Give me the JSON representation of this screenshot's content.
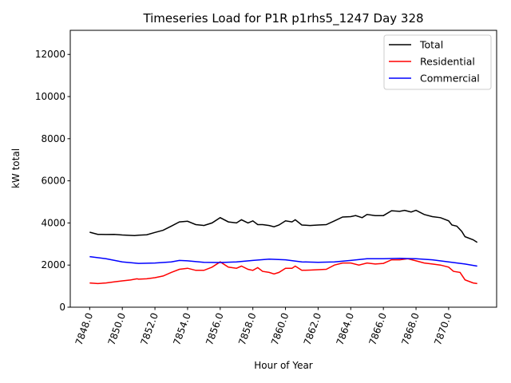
{
  "chart_data": {
    "type": "line",
    "title": "Timeseries Load for P1R p1rhs5_1247  Day 328",
    "xlabel": "Hour of Year",
    "ylabel": "kW total",
    "xlim": [
      7846.81,
      7872.94
    ],
    "ylim": [
      0,
      13145
    ],
    "xticks": [
      7848,
      7850,
      7852,
      7854,
      7856,
      7858,
      7860,
      7862,
      7864,
      7866,
      7868,
      7870
    ],
    "xtick_labels": [
      "7848.0",
      "7850.0",
      "7852.0",
      "7854.0",
      "7856.0",
      "7858.0",
      "7860.0",
      "7862.0",
      "7864.0",
      "7866.0",
      "7868.0",
      "7870.0"
    ],
    "yticks": [
      0,
      2000,
      4000,
      6000,
      8000,
      10000,
      12000
    ],
    "ytick_labels": [
      "0",
      "2000",
      "4000",
      "6000",
      "8000",
      "10000",
      "12000"
    ],
    "grid": false,
    "legend_position": "top-right",
    "series": [
      {
        "name": "Total",
        "color": "#000000",
        "x": [
          7848,
          7848.5,
          7849,
          7849.5,
          7850,
          7850.5,
          7850.75,
          7851,
          7851.5,
          7852,
          7852.5,
          7853,
          7853.5,
          7854,
          7854.5,
          7855,
          7855.5,
          7856,
          7856.5,
          7857,
          7857.3,
          7857.7,
          7858,
          7858.3,
          7858.6,
          7859,
          7859.3,
          7859.6,
          7860,
          7860.4,
          7860.6,
          7861,
          7861.5,
          7862,
          7862.5,
          7863,
          7863.5,
          7864,
          7864.3,
          7864.7,
          7865,
          7865.5,
          7866,
          7866.5,
          7867,
          7867.3,
          7867.7,
          7868,
          7868.5,
          7869,
          7869.5,
          7870,
          7870.2,
          7870.5,
          7870.8,
          7871,
          7871.5,
          7871.75
        ],
        "y": [
          3560,
          3460,
          3450,
          3460,
          3430,
          3410,
          3400,
          3420,
          3440,
          3550,
          3650,
          3850,
          4050,
          4080,
          3920,
          3880,
          4000,
          4250,
          4050,
          4000,
          4150,
          4000,
          4100,
          3920,
          3920,
          3880,
          3820,
          3900,
          4100,
          4050,
          4150,
          3900,
          3880,
          3900,
          3920,
          4100,
          4280,
          4300,
          4350,
          4250,
          4400,
          4350,
          4350,
          4580,
          4550,
          4600,
          4520,
          4600,
          4400,
          4300,
          4250,
          4100,
          3900,
          3850,
          3600,
          3350,
          3200,
          3080
        ]
      },
      {
        "name": "Residential",
        "color": "#ff0000",
        "x": [
          7848,
          7848.5,
          7849,
          7849.5,
          7850,
          7850.5,
          7850.9,
          7851,
          7851.5,
          7852,
          7852.5,
          7853,
          7853.5,
          7854,
          7854.5,
          7855,
          7855.5,
          7856,
          7856.5,
          7857,
          7857.3,
          7857.7,
          7858,
          7858.3,
          7858.6,
          7859,
          7859.3,
          7859.6,
          7860,
          7860.4,
          7860.6,
          7861,
          7861.5,
          7862,
          7862.5,
          7863,
          7863.5,
          7864,
          7864.5,
          7865,
          7865.5,
          7866,
          7866.5,
          7867,
          7867.5,
          7868,
          7868.5,
          7869,
          7869.5,
          7870,
          7870.3,
          7870.7,
          7871,
          7871.5,
          7871.75
        ],
        "y": [
          1150,
          1120,
          1150,
          1200,
          1250,
          1290,
          1350,
          1330,
          1350,
          1400,
          1480,
          1650,
          1800,
          1850,
          1750,
          1750,
          1900,
          2150,
          1900,
          1850,
          1950,
          1800,
          1750,
          1880,
          1700,
          1650,
          1580,
          1650,
          1850,
          1850,
          1950,
          1750,
          1760,
          1780,
          1800,
          2000,
          2100,
          2100,
          2000,
          2100,
          2050,
          2080,
          2250,
          2250,
          2300,
          2200,
          2100,
          2050,
          2000,
          1900,
          1700,
          1650,
          1300,
          1150,
          1120
        ]
      },
      {
        "name": "Commercial",
        "color": "#0000ff",
        "x": [
          7848,
          7849,
          7850,
          7851,
          7852,
          7853,
          7853.5,
          7854,
          7855,
          7856,
          7857,
          7858,
          7859,
          7860,
          7861,
          7862,
          7863,
          7864,
          7865,
          7866,
          7867,
          7868,
          7869,
          7870,
          7871,
          7871.75
        ],
        "y": [
          2400,
          2300,
          2150,
          2080,
          2100,
          2150,
          2220,
          2200,
          2130,
          2120,
          2150,
          2220,
          2280,
          2250,
          2150,
          2130,
          2150,
          2220,
          2300,
          2300,
          2320,
          2300,
          2250,
          2150,
          2050,
          1950
        ]
      }
    ]
  }
}
